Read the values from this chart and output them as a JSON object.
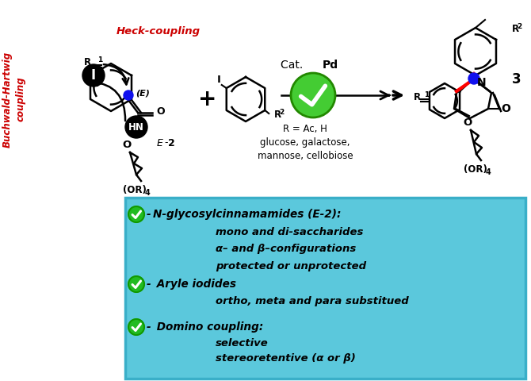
{
  "bg_color": "#ffffff",
  "box_color": "#5bc8dc",
  "box_border_color": "#3aafc8",
  "fig_width": 6.7,
  "fig_height": 4.8,
  "dpi": 100,
  "bullet_items": [
    {
      "header": "N-glycosylcinnamamides (E-2):",
      "sub": [
        "mono and di-saccharides",
        "α– and β–configurations",
        "protected or unprotected"
      ]
    },
    {
      "header": "Aryle iodides",
      "sub": [
        "ortho, meta and para substitued"
      ]
    },
    {
      "header": "Domino coupling:",
      "sub": [
        "selective",
        "stereoretentive (α or β)"
      ]
    }
  ],
  "heck_label": "Heck-coupling",
  "bh_label": "Buchwald-Hartwig\ncoupling",
  "r_label": "R = Ac, H\nglucose, galactose,\nmannose, cellobiose",
  "e2_label": "E",
  "label3": "3"
}
